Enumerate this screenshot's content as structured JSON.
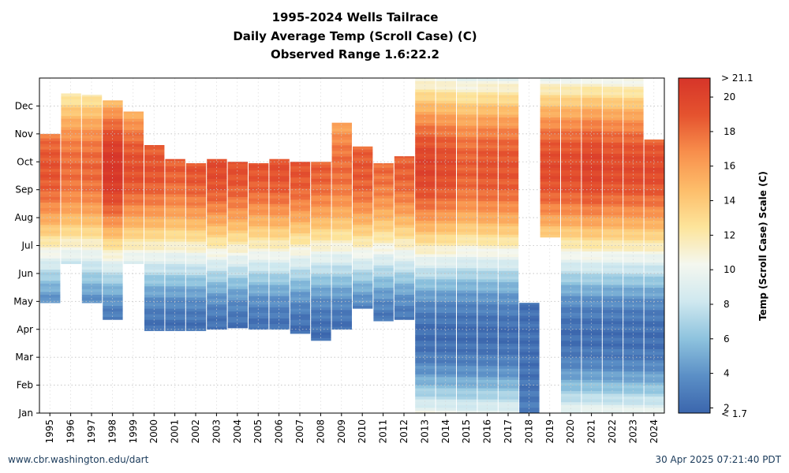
{
  "title_lines": [
    "1995-2024 Wells Tailrace",
    "Daily Average Temp (Scroll Case) (C)",
    "Observed Range 1.6:22.2"
  ],
  "footer": {
    "left": "www.cbr.washington.edu/dart",
    "right": "30 Apr 2025 07:21:40 PDT"
  },
  "chart_data": {
    "type": "heatmap",
    "title": "1995-2024 Wells Tailrace",
    "subtitle": "Daily Average Temp (Scroll Case) (C)",
    "observed_range": "Observed Range 1.6:22.2",
    "x_categories": [
      "1995",
      "1996",
      "1997",
      "1998",
      "1999",
      "2000",
      "2001",
      "2002",
      "2003",
      "2004",
      "2005",
      "2006",
      "2007",
      "2008",
      "2009",
      "2010",
      "2011",
      "2012",
      "2013",
      "2014",
      "2015",
      "2016",
      "2017",
      "2018",
      "2019",
      "2020",
      "2021",
      "2022",
      "2023",
      "2024"
    ],
    "y_labels": [
      "Jan",
      "Feb",
      "Mar",
      "Apr",
      "May",
      "Jun",
      "Jul",
      "Aug",
      "Sep",
      "Oct",
      "Nov",
      "Dec"
    ],
    "y_unit": "month",
    "colorbar": {
      "label": "Temp (Scroll Case) Scale (C)",
      "min": 1.7,
      "max": 21.1,
      "ticks": [
        2,
        4,
        6,
        8,
        10,
        12,
        14,
        16,
        18,
        20
      ],
      "top_label": "> 21.1",
      "bottom_label": "< 1.7",
      "colors": [
        "#3b66ad",
        "#5b8fc6",
        "#8ec3de",
        "#cfe8ef",
        "#f4f7ef",
        "#fde49a",
        "#fdbd6a",
        "#f88f4c",
        "#e5532f",
        "#d63529"
      ]
    },
    "years": [
      {
        "year": "1995",
        "start": 3.95,
        "end": 10.0,
        "peak": 19.0
      },
      {
        "year": "1996",
        "start": 5.35,
        "end": 11.45,
        "peak": 18.0
      },
      {
        "year": "1997",
        "start": 3.95,
        "end": 11.4,
        "peak": 18.2
      },
      {
        "year": "1998",
        "start": 3.35,
        "end": 11.2,
        "peak": 21.0
      },
      {
        "year": "1999",
        "start": 5.35,
        "end": 10.8,
        "peak": 19.2
      },
      {
        "year": "2000",
        "start": 2.95,
        "end": 9.6,
        "peak": 19.0
      },
      {
        "year": "2001",
        "start": 2.95,
        "end": 9.1,
        "peak": 18.5
      },
      {
        "year": "2002",
        "start": 2.95,
        "end": 8.95,
        "peak": 19.0
      },
      {
        "year": "2003",
        "start": 3.0,
        "end": 9.1,
        "peak": 19.5
      },
      {
        "year": "2004",
        "start": 3.05,
        "end": 9.0,
        "peak": 19.2
      },
      {
        "year": "2005",
        "start": 3.0,
        "end": 8.95,
        "peak": 19.0
      },
      {
        "year": "2006",
        "start": 3.0,
        "end": 9.1,
        "peak": 19.2
      },
      {
        "year": "2007",
        "start": 2.85,
        "end": 9.0,
        "peak": 19.0
      },
      {
        "year": "2008",
        "start": 2.6,
        "end": 9.0,
        "peak": 18.5
      },
      {
        "year": "2009",
        "start": 3.0,
        "end": 10.4,
        "peak": 18.0
      },
      {
        "year": "2010",
        "start": 3.75,
        "end": 9.55,
        "peak": 18.8
      },
      {
        "year": "2011",
        "start": 3.3,
        "end": 8.95,
        "peak": 18.0
      },
      {
        "year": "2012",
        "start": 3.35,
        "end": 9.2,
        "peak": 18.5
      },
      {
        "year": "2013",
        "start": 0.0,
        "end": 12.0,
        "peak": 20.0
      },
      {
        "year": "2014",
        "start": 0.0,
        "end": 12.0,
        "peak": 19.5
      },
      {
        "year": "2015",
        "start": 0.0,
        "end": 12.0,
        "peak": 18.5
      },
      {
        "year": "2016",
        "start": 0.0,
        "end": 12.0,
        "peak": 19.0
      },
      {
        "year": "2017",
        "start": 0.0,
        "end": 12.0,
        "peak": 19.0
      },
      {
        "year": "2018",
        "start": 0.0,
        "end": 3.95,
        "peak": 4.0
      },
      {
        "year": "2019",
        "start": 6.3,
        "end": 12.0,
        "peak": 19.5
      },
      {
        "year": "2020",
        "start": 0.0,
        "end": 12.0,
        "peak": 19.5
      },
      {
        "year": "2021",
        "start": 0.0,
        "end": 12.0,
        "peak": 20.0
      },
      {
        "year": "2022",
        "start": 0.0,
        "end": 12.0,
        "peak": 19.5
      },
      {
        "year": "2023",
        "start": 0.0,
        "end": 12.0,
        "peak": 19.5
      },
      {
        "year": "2024",
        "start": 0.0,
        "end": 9.8,
        "peak": 19.5
      }
    ]
  }
}
